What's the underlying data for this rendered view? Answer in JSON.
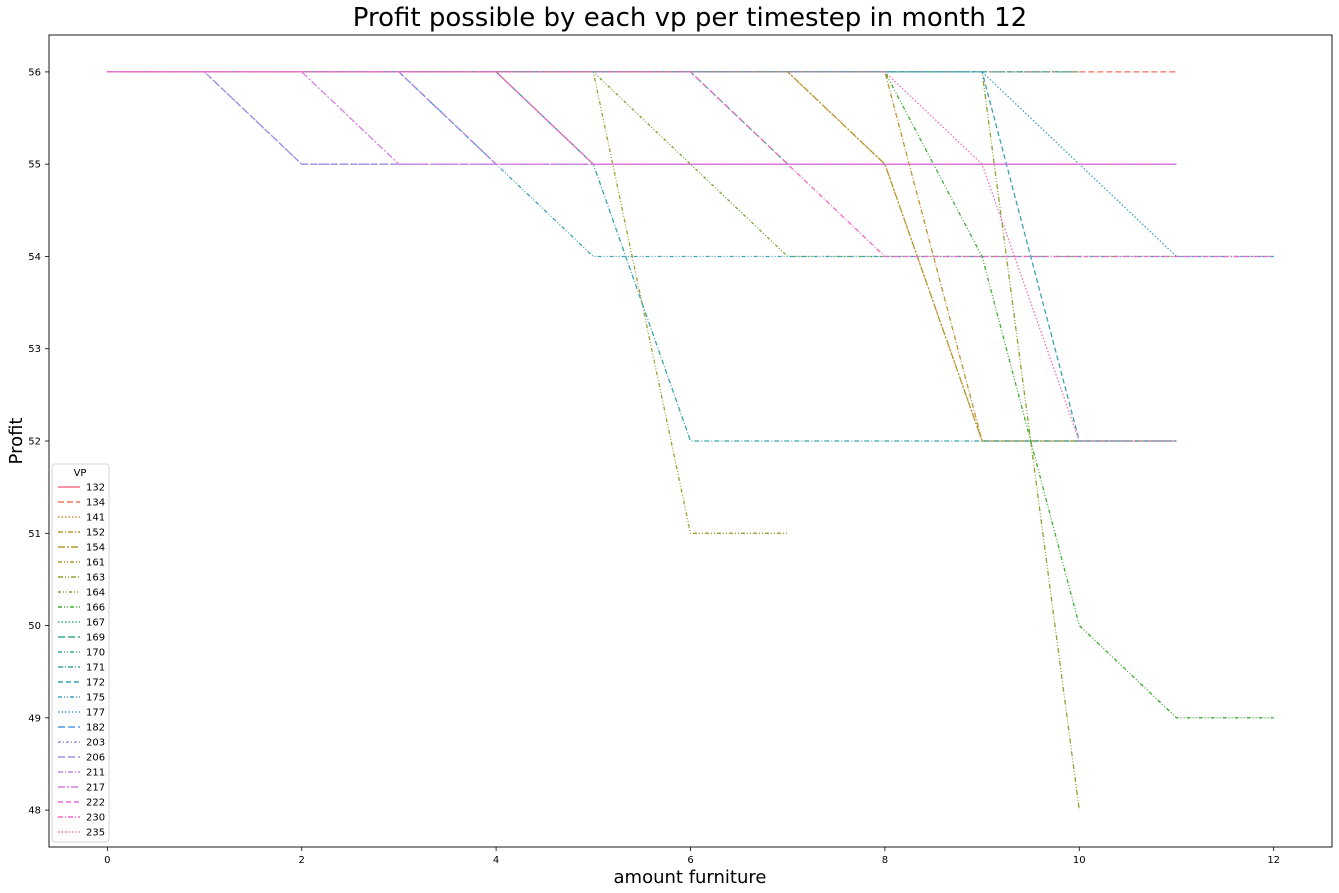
{
  "chart_data": {
    "type": "line",
    "title": "Profit possible by each vp per timestep in month 12",
    "xlabel": "amount furniture",
    "ylabel": "Profit",
    "xlim": [
      -0.6,
      12.6
    ],
    "ylim": [
      47.6,
      56.4
    ],
    "xticks": [
      0,
      2,
      4,
      6,
      8,
      10,
      12
    ],
    "yticks": [
      48,
      49,
      50,
      51,
      52,
      53,
      54,
      55,
      56
    ],
    "grid": false,
    "legend": {
      "title": "VP",
      "placement": "lower-left"
    },
    "series": [
      {
        "name": "132",
        "color": "#f77189",
        "dash": "",
        "points": [
          [
            0,
            56
          ],
          [
            4,
            56
          ],
          [
            5,
            55
          ],
          [
            11,
            55
          ]
        ]
      },
      {
        "name": "134",
        "color": "#f3715b",
        "dash": "6,3",
        "points": [
          [
            0,
            56
          ],
          [
            3,
            56
          ],
          [
            11,
            56
          ]
        ]
      },
      {
        "name": "141",
        "color": "#d58c32",
        "dash": "1.5,2",
        "points": [
          [
            0,
            56
          ],
          [
            7,
            56
          ],
          [
            8,
            55
          ],
          [
            9,
            52
          ],
          [
            11,
            52
          ]
        ]
      },
      {
        "name": "152",
        "color": "#c39332",
        "dash": "5,2,1,2",
        "points": [
          [
            0,
            56
          ],
          [
            8,
            56
          ],
          [
            9,
            52
          ],
          [
            10,
            52
          ]
        ]
      },
      {
        "name": "154",
        "color": "#b59a32",
        "dash": "7,2,2,2",
        "points": [
          [
            0,
            56
          ],
          [
            7,
            56
          ],
          [
            8,
            55
          ],
          [
            9,
            52
          ],
          [
            11,
            52
          ]
        ]
      },
      {
        "name": "161",
        "color": "#a29e31",
        "dash": "4,2,1,2,1,2",
        "points": [
          [
            0,
            56
          ],
          [
            5,
            56
          ],
          [
            6,
            51
          ],
          [
            7,
            51
          ]
        ]
      },
      {
        "name": "163",
        "color": "#8fa331",
        "dash": "5,2,1,2,1,2",
        "points": [
          [
            0,
            56
          ],
          [
            9,
            56
          ],
          [
            10,
            48
          ]
        ]
      },
      {
        "name": "164",
        "color": "#71a831",
        "dash": "3,2,1,2,1,2",
        "points": [
          [
            0,
            56
          ],
          [
            5,
            56
          ],
          [
            6,
            55
          ],
          [
            7,
            54
          ],
          [
            11,
            54
          ]
        ]
      },
      {
        "name": "166",
        "color": "#40ad34",
        "dash": "4,2,1,2,1,2",
        "points": [
          [
            0,
            56
          ],
          [
            8,
            56
          ],
          [
            9,
            54
          ],
          [
            10,
            50
          ],
          [
            11,
            49
          ],
          [
            12,
            49
          ]
        ]
      },
      {
        "name": "167",
        "color": "#36ad73",
        "dash": "1.5,2",
        "points": [
          [
            0,
            56
          ],
          [
            10,
            56
          ]
        ]
      },
      {
        "name": "169",
        "color": "#38a88f",
        "dash": "7,3",
        "points": [
          [
            0,
            56
          ],
          [
            6,
            56
          ],
          [
            7,
            55
          ],
          [
            11,
            55
          ]
        ]
      },
      {
        "name": "170",
        "color": "#39a69b",
        "dash": "4,2,1,2,1,2",
        "points": [
          [
            0,
            56
          ],
          [
            10,
            56
          ]
        ]
      },
      {
        "name": "171",
        "color": "#3aa5a8",
        "dash": "5,2,1,2",
        "points": [
          [
            0,
            56
          ],
          [
            4,
            56
          ],
          [
            5,
            55
          ],
          [
            6,
            52
          ],
          [
            10,
            52
          ],
          [
            11,
            52
          ]
        ]
      },
      {
        "name": "172",
        "color": "#3ca3b4",
        "dash": "5,3",
        "points": [
          [
            0,
            56
          ],
          [
            8,
            56
          ],
          [
            9,
            56
          ],
          [
            10,
            52
          ],
          [
            11,
            52
          ]
        ]
      },
      {
        "name": "175",
        "color": "#3ea1c0",
        "dash": "4,2,1,2,1,2",
        "points": [
          [
            0,
            56
          ],
          [
            3,
            56
          ],
          [
            4,
            55
          ],
          [
            5,
            54
          ],
          [
            12,
            54
          ]
        ]
      },
      {
        "name": "177",
        "color": "#409ece",
        "dash": "1.5,2",
        "points": [
          [
            0,
            56
          ],
          [
            9,
            56
          ],
          [
            10,
            55
          ],
          [
            11,
            54
          ],
          [
            12,
            54
          ]
        ]
      },
      {
        "name": "182",
        "color": "#4c98e0",
        "dash": "7,3",
        "points": [
          [
            0,
            56
          ],
          [
            3,
            56
          ],
          [
            4,
            55
          ],
          [
            11,
            55
          ]
        ]
      },
      {
        "name": "203",
        "color": "#8c8ee4",
        "dash": "3,2,1,2",
        "points": [
          [
            0,
            56
          ],
          [
            1,
            56
          ],
          [
            2,
            55
          ],
          [
            11,
            55
          ]
        ]
      },
      {
        "name": "206",
        "color": "#a68be4",
        "dash": "7,3",
        "points": [
          [
            0,
            56
          ],
          [
            1,
            56
          ],
          [
            2,
            55
          ],
          [
            11,
            55
          ]
        ]
      },
      {
        "name": "211",
        "color": "#c185e4",
        "dash": "5,2,1,2",
        "points": [
          [
            0,
            56
          ],
          [
            3,
            56
          ],
          [
            4,
            55
          ],
          [
            11,
            55
          ]
        ]
      },
      {
        "name": "217",
        "color": "#da7ee1",
        "dash": "7,2,2,2",
        "points": [
          [
            0,
            56
          ],
          [
            2,
            56
          ],
          [
            3,
            55
          ],
          [
            11,
            55
          ]
        ]
      },
      {
        "name": "222",
        "color": "#e66fd7",
        "dash": "5,3",
        "points": [
          [
            0,
            56
          ],
          [
            4,
            56
          ],
          [
            5,
            55
          ],
          [
            11,
            55
          ]
        ]
      },
      {
        "name": "230",
        "color": "#f069c6",
        "dash": "5,2,1,2",
        "points": [
          [
            0,
            56
          ],
          [
            6,
            56
          ],
          [
            7,
            55
          ],
          [
            8,
            54
          ],
          [
            12,
            54
          ]
        ]
      },
      {
        "name": "235",
        "color": "#f56cb2",
        "dash": "1.5,2",
        "points": [
          [
            0,
            56
          ],
          [
            8,
            56
          ],
          [
            9,
            55
          ],
          [
            10,
            52
          ],
          [
            11,
            52
          ]
        ]
      }
    ]
  }
}
